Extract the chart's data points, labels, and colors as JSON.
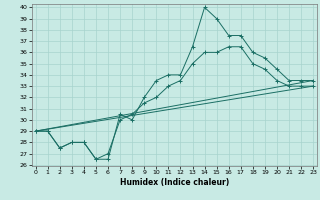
{
  "xlabel": "Humidex (Indice chaleur)",
  "background_color": "#c8eae4",
  "grid_color": "#a8d4ce",
  "line_color": "#1a6e64",
  "ylim": [
    26,
    40
  ],
  "xlim": [
    0,
    23
  ],
  "yticks": [
    26,
    27,
    28,
    29,
    30,
    31,
    32,
    33,
    34,
    35,
    36,
    37,
    38,
    39,
    40
  ],
  "xticks": [
    0,
    1,
    2,
    3,
    4,
    5,
    6,
    7,
    8,
    9,
    10,
    11,
    12,
    13,
    14,
    15,
    16,
    17,
    18,
    19,
    20,
    21,
    22,
    23
  ],
  "series1_x": [
    0,
    1,
    2,
    3,
    4,
    5,
    6,
    7,
    8,
    9,
    10,
    11,
    12,
    13,
    14,
    15,
    16,
    17,
    18,
    19,
    20,
    21,
    22,
    23
  ],
  "series1_y": [
    29,
    29,
    27.5,
    28,
    28,
    26.5,
    26.5,
    30.5,
    30,
    32,
    33.5,
    34,
    34,
    36.5,
    40,
    39,
    37.5,
    37.5,
    36,
    35.5,
    34.5,
    33.5,
    33.5,
    33.5
  ],
  "series2_x": [
    0,
    1,
    2,
    3,
    4,
    5,
    6,
    7,
    8,
    9,
    10,
    11,
    12,
    13,
    14,
    15,
    16,
    17,
    18,
    19,
    20,
    21,
    22,
    23
  ],
  "series2_y": [
    29,
    29,
    27.5,
    28,
    28,
    26.5,
    27,
    30,
    30.5,
    31.5,
    32,
    33,
    33.5,
    35,
    36,
    36,
    36.5,
    36.5,
    35,
    34.5,
    33.5,
    33,
    33,
    33
  ],
  "trend1_x": [
    0,
    23
  ],
  "trend1_y": [
    29,
    33.5
  ],
  "trend2_x": [
    0,
    23
  ],
  "trend2_y": [
    29,
    33.0
  ]
}
